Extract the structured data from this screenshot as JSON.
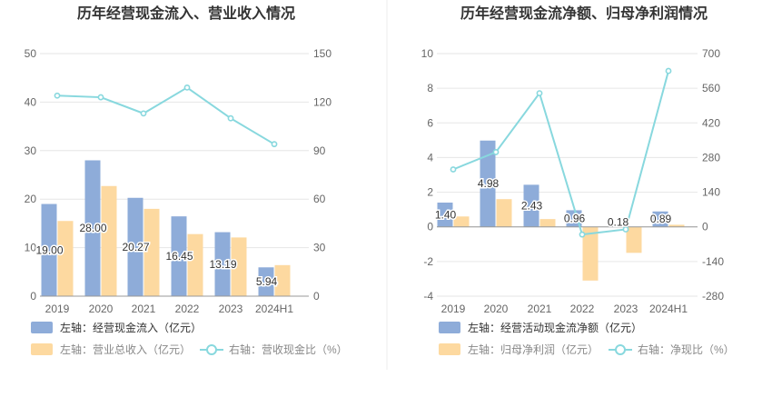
{
  "colors": {
    "bar_primary": "#8eacd9",
    "bar_secondary": "#fdd9a0",
    "line": "#88d8de",
    "grid": "#e6e6e6",
    "axis_text": "#666666",
    "title_text": "#333333",
    "divider": "#eeeeee"
  },
  "chart_data": [
    {
      "type": "bar",
      "title": "历年经营现金流入、营业收入情况",
      "categories": [
        "2019",
        "2020",
        "2021",
        "2022",
        "2023",
        "2024H1"
      ],
      "left_axis": {
        "ylim": [
          0,
          50
        ],
        "ticks": [
          "0",
          "10",
          "20",
          "30",
          "40",
          "50"
        ]
      },
      "right_axis": {
        "ylim": [
          0,
          150
        ],
        "ticks": [
          "0",
          "30",
          "60",
          "90",
          "120",
          "150"
        ]
      },
      "grid": true,
      "series": [
        {
          "name": "左轴：经营现金流入（亿元）",
          "type": "bar",
          "axis": "left",
          "values": [
            19.0,
            28.0,
            20.27,
            16.45,
            13.19,
            5.94
          ],
          "labels": [
            "19.00",
            "28.00",
            "20.27",
            "16.45",
            "13.19",
            "5.94"
          ]
        },
        {
          "name": "左轴：营业总收入（亿元）",
          "type": "bar",
          "axis": "left",
          "values": [
            15.5,
            22.7,
            18.0,
            12.8,
            12.1,
            6.4
          ]
        },
        {
          "name": "右轴：营收现金比（%）",
          "type": "line",
          "axis": "right",
          "values": [
            124.0,
            123.0,
            113.0,
            129.0,
            110.0,
            94.0
          ]
        }
      ],
      "legend_position": "bottom"
    },
    {
      "type": "bar",
      "title": "历年经营现金流净额、归母净利润情况",
      "categories": [
        "2019",
        "2020",
        "2021",
        "2022",
        "2023",
        "2024H1"
      ],
      "left_axis": {
        "ylim": [
          -4,
          10
        ],
        "ticks": [
          "-4",
          "-2",
          "0",
          "2",
          "4",
          "6",
          "8",
          "10"
        ]
      },
      "right_axis": {
        "ylim": [
          -280,
          700
        ],
        "ticks": [
          "-280",
          "-140",
          "0",
          "140",
          "280",
          "420",
          "560",
          "700"
        ]
      },
      "grid": true,
      "series": [
        {
          "name": "左轴：经营活动现金流净额（亿元）",
          "type": "bar",
          "axis": "left",
          "values": [
            1.4,
            4.98,
            2.43,
            0.96,
            0.18,
            0.89
          ],
          "labels": [
            "1.40",
            "4.98",
            "2.43",
            "0.96",
            "0.18",
            "0.89"
          ]
        },
        {
          "name": "左轴：归母净利润（亿元）",
          "type": "bar",
          "axis": "left",
          "values": [
            0.6,
            1.6,
            0.45,
            -3.1,
            -1.5,
            0.12
          ]
        },
        {
          "name": "右轴：净现比（%）",
          "type": "line",
          "axis": "right",
          "values": [
            232.0,
            302.0,
            540.0,
            -31.0,
            -10.0,
            630.0
          ]
        }
      ],
      "legend_position": "bottom"
    }
  ]
}
